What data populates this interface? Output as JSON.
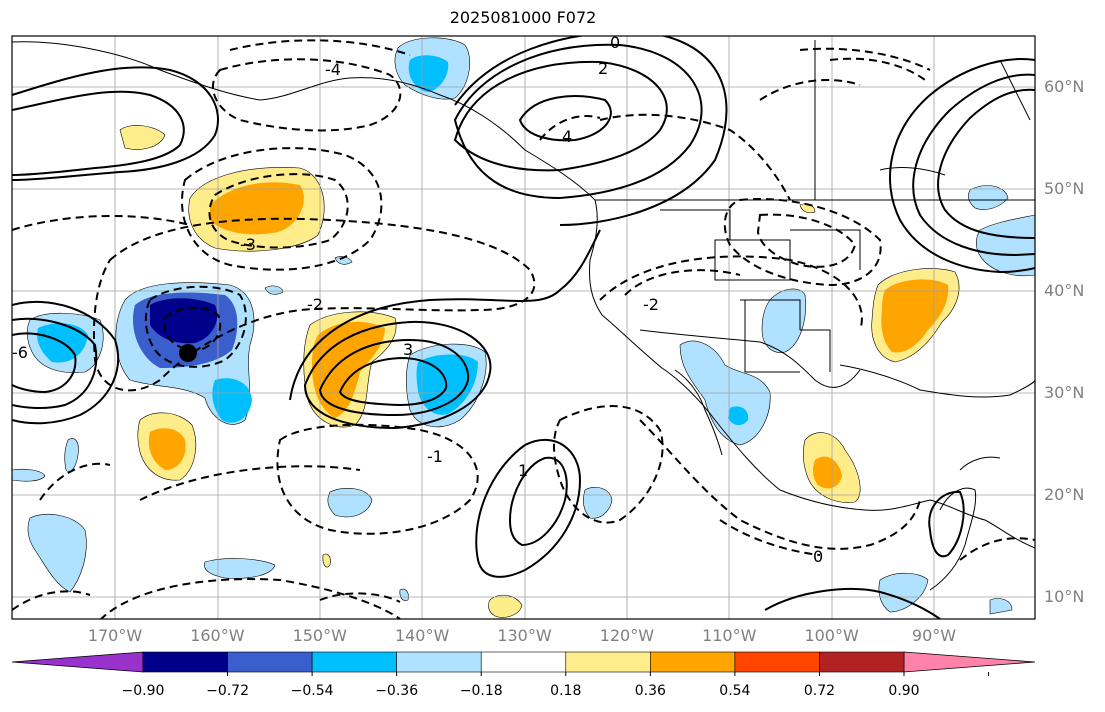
{
  "title": "2025081000 F072",
  "map": {
    "lat_labels": [
      {
        "label": "60°N",
        "lat": 60
      },
      {
        "label": "50°N",
        "lat": 50
      },
      {
        "label": "40°N",
        "lat": 40
      },
      {
        "label": "30°N",
        "lat": 30
      },
      {
        "label": "20°N",
        "lat": 20
      },
      {
        "label": "10°N",
        "lat": 10
      }
    ],
    "lon_labels": [
      {
        "label": "170°W",
        "lon": -170
      },
      {
        "label": "160°W",
        "lon": -160
      },
      {
        "label": "150°W",
        "lon": -150
      },
      {
        "label": "140°W",
        "lon": -140
      },
      {
        "label": "130°W",
        "lon": -130
      },
      {
        "label": "120°W",
        "lon": -120
      },
      {
        "label": "110°W",
        "lon": -110
      },
      {
        "label": "100°W",
        "lon": -100
      },
      {
        "label": "90°W",
        "lon": -90
      }
    ],
    "contour_labels": [
      "0",
      "2",
      "-3",
      "-2",
      "4",
      "3",
      "-1",
      "1",
      "-4",
      "-6",
      "-2",
      "0"
    ]
  },
  "colorbar": {
    "ticks": [
      "−0.90",
      "−0.72",
      "−0.54",
      "−0.36",
      "−0.18",
      "0.18",
      "0.36",
      "0.54",
      "0.72",
      "0.90"
    ],
    "colors": [
      "#9932cc",
      "#00008b",
      "#3a5fcd",
      "#00bfff",
      "#b0e2ff",
      "#ffffff",
      "#ffec8b",
      "#ffa500",
      "#ff4500",
      "#b22222",
      "#ff82ab"
    ]
  }
}
